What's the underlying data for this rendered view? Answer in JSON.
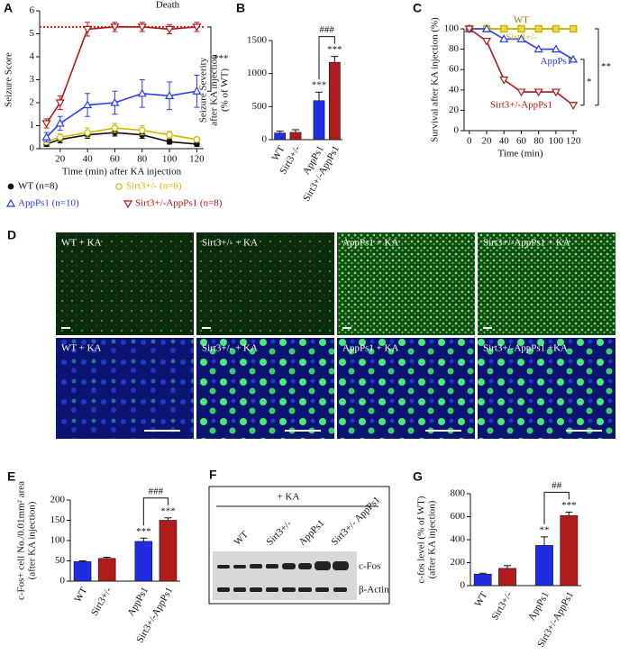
{
  "chart_data": [
    {
      "type": "line",
      "label": "A",
      "ylabel": [
        "Seizure Score"
      ],
      "xlabel": "Time (min)   after KA injection",
      "x": [
        10,
        20,
        40,
        60,
        80,
        100,
        120
      ],
      "xlim": [
        5,
        125
      ],
      "xticks": [
        20,
        40,
        60,
        80,
        100,
        120
      ],
      "ylim": [
        0,
        6
      ],
      "yticks": [
        0,
        1,
        2,
        3,
        4,
        5,
        6
      ],
      "legend": "bottom",
      "reference_line": {
        "value": 5.3,
        "label": "Death",
        "color": "#e02020"
      },
      "series": [
        {
          "name": "WT (n=8)",
          "color": "#111111",
          "marker": "circle",
          "values": [
            0.2,
            0.4,
            0.6,
            0.7,
            0.6,
            0.3,
            0.2
          ],
          "errors": [
            0.1,
            0.15,
            0.15,
            0.15,
            0.15,
            0.1,
            0.1
          ]
        },
        {
          "name": "Sirt3+/- (n=8)",
          "color": "#d4b800",
          "marker": "hexagon",
          "values": [
            0.3,
            0.5,
            0.7,
            0.9,
            0.8,
            0.6,
            0.4
          ],
          "errors": [
            0.1,
            0.15,
            0.2,
            0.2,
            0.2,
            0.15,
            0.1
          ]
        },
        {
          "name": "AppPs1 (n=10)",
          "color": "#2a3cf0",
          "marker": "triangle",
          "values": [
            0.5,
            1.1,
            1.9,
            2.0,
            2.4,
            2.3,
            2.5
          ],
          "errors": [
            0.2,
            0.3,
            0.5,
            0.5,
            0.6,
            0.6,
            0.7
          ]
        },
        {
          "name": "Sirt3+/-AppPs1 (n=8)",
          "color": "#b01818",
          "marker": "triangle-down",
          "values": [
            1.1,
            2.0,
            5.2,
            5.3,
            5.3,
            5.2,
            5.3
          ],
          "errors": [
            0.2,
            0.3,
            0.3,
            0.2,
            0.2,
            0.2,
            0.2
          ]
        }
      ],
      "brackets": [
        {
          "series": [
            "AppPs1 (n=10)",
            "Sirt3+/-AppPs1 (n=8)"
          ],
          "text": "***"
        }
      ]
    },
    {
      "type": "bar",
      "label": "B",
      "ylabel": [
        "Seizure Severity",
        "after KA injection",
        "(% of WT)"
      ],
      "categories": [
        "WT",
        "Sirt3+/-",
        "AppPs1",
        "Sirt3+/-AppPs1"
      ],
      "values": [
        100,
        110,
        590,
        1170
      ],
      "errors": [
        30,
        40,
        130,
        90
      ],
      "colors": [
        "#1f2de0",
        "#b01c1c",
        "#1f2de0",
        "#b01c1c"
      ],
      "ylim": [
        0,
        1500
      ],
      "yticks": [
        0,
        500,
        1000,
        1500
      ],
      "annotations": [
        {
          "category": "AppPs1",
          "text": "***"
        },
        {
          "category": "Sirt3+/-AppPs1",
          "text": "***"
        }
      ],
      "brackets": [
        {
          "categories": [
            "AppPs1",
            "Sirt3+/-AppPs1"
          ],
          "text": "###"
        }
      ]
    },
    {
      "type": "line",
      "label": "C",
      "ylabel": [
        "Survival after KA injection (%)"
      ],
      "xlabel": "Time (min)",
      "x": [
        0,
        20,
        40,
        60,
        80,
        100,
        120
      ],
      "xlim": [
        -6,
        124
      ],
      "xticks": [
        0,
        20,
        40,
        60,
        80,
        100,
        120
      ],
      "ylim": [
        0,
        100
      ],
      "yticks": [
        0,
        20,
        40,
        60,
        80,
        100
      ],
      "legend": "inline",
      "series": [
        {
          "name": "WT",
          "color": "#8a7a00",
          "marker": "square",
          "values": [
            100,
            100,
            100,
            100,
            100,
            100,
            100
          ]
        },
        {
          "name": "Sirt3+/-",
          "color": "#c8b400",
          "marker": "square",
          "values": [
            100,
            100,
            100,
            100,
            100,
            100,
            100
          ]
        },
        {
          "name": "AppPs1",
          "color": "#2a3cf0",
          "marker": "triangle",
          "values": [
            100,
            100,
            90,
            90,
            80,
            80,
            70
          ]
        },
        {
          "name": "Sirt3+/-AppPs1",
          "color": "#b01818",
          "marker": "triangle-down",
          "values": [
            100,
            88,
            50,
            38,
            38,
            38,
            25
          ]
        }
      ],
      "brackets": [
        {
          "series": [
            "AppPs1",
            "Sirt3+/-AppPs1"
          ],
          "text": "*"
        },
        {
          "series": [
            "WT",
            "Sirt3+/-AppPs1"
          ],
          "text": "**"
        }
      ]
    },
    {
      "type": "bar",
      "label": "E",
      "ylabel": [
        "c-Fos+ cell No./0.01mm² area",
        "(after KA injection)"
      ],
      "categories": [
        "WT",
        "Sirt3+/-",
        "AppPs1",
        "Sirt3+/-AppPs1"
      ],
      "values": [
        48,
        56,
        98,
        150
      ],
      "errors": [
        2,
        3,
        8,
        6
      ],
      "colors": [
        "#1f2de0",
        "#b01c1c",
        "#1f2de0",
        "#b01c1c"
      ],
      "ylim": [
        0,
        200
      ],
      "yticks": [
        0,
        50,
        100,
        150,
        200
      ],
      "annotations": [
        {
          "category": "AppPs1",
          "text": "***"
        },
        {
          "category": "Sirt3+/-AppPs1",
          "text": "***"
        }
      ],
      "brackets": [
        {
          "categories": [
            "AppPs1",
            "Sirt3+/-AppPs1"
          ],
          "text": "###"
        }
      ]
    },
    {
      "type": "bar",
      "label": "G",
      "ylabel": [
        "c-fos level (% of WT)",
        "(after KA injection)"
      ],
      "categories": [
        "WT",
        "Sirt3+/-",
        "AppPs1",
        "Sirt3+/-AppPs1"
      ],
      "values": [
        100,
        150,
        350,
        610
      ],
      "errors": [
        8,
        25,
        75,
        30
      ],
      "colors": [
        "#1f2de0",
        "#b01c1c",
        "#1f2de0",
        "#b01c1c"
      ],
      "ylim": [
        0,
        800
      ],
      "yticks": [
        0,
        200,
        400,
        600,
        800
      ],
      "annotations": [
        {
          "category": "AppPs1",
          "text": "**"
        },
        {
          "category": "Sirt3+/-AppPs1",
          "text": "***"
        }
      ],
      "brackets": [
        {
          "categories": [
            "AppPs1",
            "Sirt3+/-AppPs1"
          ],
          "text": "##"
        }
      ]
    }
  ],
  "panel_d": {
    "label": "D",
    "top_row": [
      "WT + KA",
      "Sirt3+/- + KA",
      "AppPs1 + KA",
      "Sirt3+/-AppPs1 + KA"
    ],
    "bottom_row": [
      "WT + KA",
      "Sirt3+/- + KA",
      "AppPs1 + KA",
      "Sirt3+/-AppPs1 +KA"
    ]
  },
  "panel_f": {
    "label": "F",
    "treatment": "+ KA",
    "lanes": [
      "WT",
      "Sirt3+/-",
      "AppPs1",
      "Sirt3+/- AppPs1"
    ],
    "bands": [
      "c-Fos",
      "β-Actin"
    ]
  }
}
